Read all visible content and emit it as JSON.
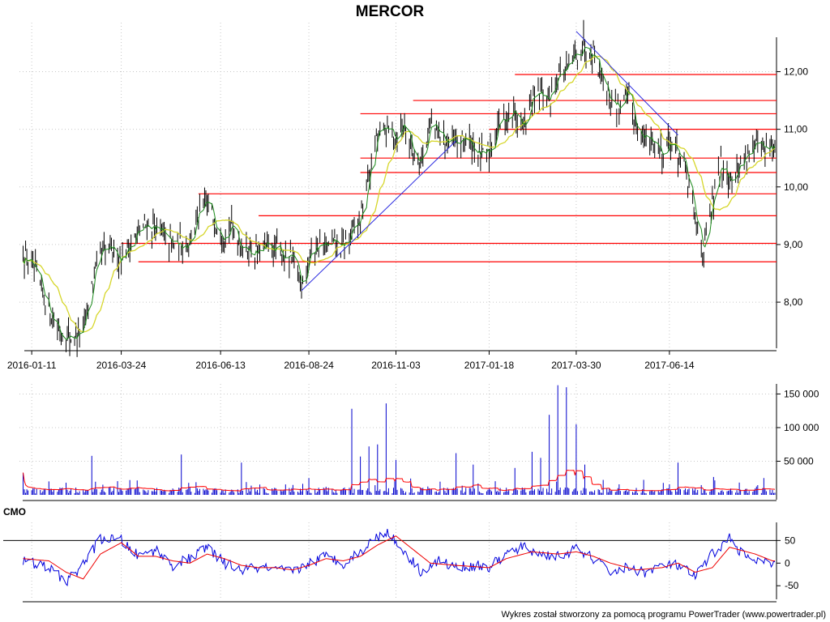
{
  "chart_data": [
    {
      "type": "candlestick",
      "panel": "price",
      "title": "MERCOR",
      "x_tick_labels": [
        "2016-01-11",
        "2016-03-24",
        "2016-06-13",
        "2016-08-24",
        "2016-11-03",
        "2017-01-18",
        "2017-03-30",
        "2017-06-14"
      ],
      "y_tick_labels": [
        "8,00",
        "9,00",
        "10,00",
        "11,00",
        "12,00"
      ],
      "y_tick_values": [
        8,
        9,
        10,
        11,
        12
      ],
      "ylim": [
        7.2,
        12.85
      ],
      "grid": true,
      "approx_close_path": [
        [
          "2016-01-04",
          8.85
        ],
        [
          "2016-01-11",
          8.6
        ],
        [
          "2016-01-18",
          8.25
        ],
        [
          "2016-01-25",
          7.9
        ],
        [
          "2016-02-01",
          7.55
        ],
        [
          "2016-02-08",
          7.4
        ],
        [
          "2016-02-15",
          7.4
        ],
        [
          "2016-02-22",
          7.5
        ],
        [
          "2016-02-29",
          8.3
        ],
        [
          "2016-03-07",
          8.8
        ],
        [
          "2016-03-14",
          8.9
        ],
        [
          "2016-03-24",
          8.8
        ],
        [
          "2016-03-31",
          9.0
        ],
        [
          "2016-04-07",
          9.2
        ],
        [
          "2016-04-14",
          9.35
        ],
        [
          "2016-04-21",
          9.3
        ],
        [
          "2016-04-28",
          9.1
        ],
        [
          "2016-05-05",
          9.0
        ],
        [
          "2016-05-12",
          9.0
        ],
        [
          "2016-05-19",
          9.1
        ],
        [
          "2016-05-26",
          9.5
        ],
        [
          "2016-06-02",
          9.7
        ],
        [
          "2016-06-09",
          9.4
        ],
        [
          "2016-06-16",
          9.2
        ],
        [
          "2016-06-23",
          9.3
        ],
        [
          "2016-06-30",
          9.0
        ],
        [
          "2016-07-07",
          8.9
        ],
        [
          "2016-07-14",
          8.85
        ],
        [
          "2016-07-21",
          8.95
        ],
        [
          "2016-07-28",
          8.9
        ],
        [
          "2016-08-04",
          8.8
        ],
        [
          "2016-08-11",
          8.7
        ],
        [
          "2016-08-18",
          8.35
        ],
        [
          "2016-08-24",
          8.8
        ],
        [
          "2016-08-31",
          9.0
        ],
        [
          "2016-09-07",
          8.95
        ],
        [
          "2016-09-14",
          9.0
        ],
        [
          "2016-09-21",
          8.95
        ],
        [
          "2016-09-28",
          9.2
        ],
        [
          "2016-10-05",
          9.45
        ],
        [
          "2016-10-12",
          10.2
        ],
        [
          "2016-10-19",
          10.9
        ],
        [
          "2016-10-26",
          11.0
        ],
        [
          "2016-11-03",
          10.9
        ],
        [
          "2016-11-10",
          11.1
        ],
        [
          "2016-11-17",
          10.6
        ],
        [
          "2016-11-24",
          10.5
        ],
        [
          "2016-12-01",
          11.1
        ],
        [
          "2016-12-08",
          10.9
        ],
        [
          "2016-12-15",
          10.8
        ],
        [
          "2016-12-22",
          10.7
        ],
        [
          "2016-12-29",
          10.85
        ],
        [
          "2017-01-05",
          10.7
        ],
        [
          "2017-01-12",
          10.5
        ],
        [
          "2017-01-18",
          10.6
        ],
        [
          "2017-01-25",
          11.1
        ],
        [
          "2017-02-01",
          11.2
        ],
        [
          "2017-02-08",
          11.3
        ],
        [
          "2017-02-15",
          11.0
        ],
        [
          "2017-02-22",
          11.5
        ],
        [
          "2017-03-01",
          11.6
        ],
        [
          "2017-03-08",
          11.5
        ],
        [
          "2017-03-15",
          12.0
        ],
        [
          "2017-03-22",
          12.0
        ],
        [
          "2017-03-30",
          12.3
        ],
        [
          "2017-04-06",
          12.5
        ],
        [
          "2017-04-13",
          12.35
        ],
        [
          "2017-04-20",
          11.95
        ],
        [
          "2017-04-27",
          11.5
        ],
        [
          "2017-05-04",
          11.4
        ],
        [
          "2017-05-11",
          11.55
        ],
        [
          "2017-05-18",
          11.1
        ],
        [
          "2017-05-25",
          10.8
        ],
        [
          "2017-06-01",
          10.8
        ],
        [
          "2017-06-08",
          10.6
        ],
        [
          "2017-06-14",
          10.8
        ],
        [
          "2017-06-21",
          10.6
        ],
        [
          "2017-06-28",
          10.2
        ],
        [
          "2017-07-05",
          9.4
        ],
        [
          "2017-07-12",
          8.9
        ],
        [
          "2017-07-19",
          9.7
        ],
        [
          "2017-07-26",
          10.4
        ],
        [
          "2017-08-02",
          10.2
        ],
        [
          "2017-08-09",
          10.3
        ],
        [
          "2017-08-16",
          10.6
        ],
        [
          "2017-08-23",
          10.7
        ],
        [
          "2017-08-30",
          10.6
        ],
        [
          "2017-09-06",
          10.7
        ]
      ],
      "horizontal_levels": [
        {
          "y": 11.95,
          "from": "2017-02-08"
        },
        {
          "y": 11.5,
          "from": "2016-11-17"
        },
        {
          "y": 11.27,
          "from": "2016-10-05"
        },
        {
          "y": 11.0,
          "from": "2017-01-18"
        },
        {
          "y": 10.5,
          "from": "2016-10-05"
        },
        {
          "y": 10.25,
          "from": "2016-10-05"
        },
        {
          "y": 9.88,
          "from": "2016-05-26"
        },
        {
          "y": 9.5,
          "from": "2016-07-14"
        },
        {
          "y": 9.02,
          "from": "2016-03-24"
        },
        {
          "y": 8.7,
          "from": "2016-04-07"
        }
      ],
      "trend_lines": [
        {
          "from": [
            "2016-08-18",
            8.2
          ],
          "to": [
            "2016-12-22",
            10.8
          ]
        },
        {
          "from": [
            "2017-03-30",
            12.7
          ],
          "to": [
            "2017-06-21",
            10.9
          ]
        }
      ],
      "colors": {
        "candles": "#000000",
        "moving_average_short": "#1a8a1a",
        "moving_average_long": "#d6d62a",
        "levels": "#ff0000",
        "trend_lines": "#2929e0"
      }
    },
    {
      "type": "bar",
      "panel": "volume",
      "y_tick_labels": [
        "50 000",
        "100 000",
        "150 000"
      ],
      "y_tick_values": [
        50000,
        100000,
        150000
      ],
      "ylim": [
        0,
        165000
      ],
      "spikes": [
        [
          "2016-01-04",
          33000
        ],
        [
          "2016-01-25",
          20000
        ],
        [
          "2016-02-08",
          18000
        ],
        [
          "2016-02-29",
          58000
        ],
        [
          "2016-03-31",
          22000
        ],
        [
          "2016-05-12",
          60000
        ],
        [
          "2016-06-30",
          48000
        ],
        [
          "2016-08-24",
          25000
        ],
        [
          "2016-09-28",
          128000
        ],
        [
          "2016-10-05",
          57000
        ],
        [
          "2016-10-12",
          72000
        ],
        [
          "2016-10-19",
          75000
        ],
        [
          "2016-10-26",
          136000
        ],
        [
          "2016-11-03",
          52000
        ],
        [
          "2016-12-22",
          62000
        ],
        [
          "2017-01-05",
          45000
        ],
        [
          "2017-02-08",
          40000
        ],
        [
          "2017-02-22",
          64000
        ],
        [
          "2017-03-01",
          55000
        ],
        [
          "2017-03-08",
          119000
        ],
        [
          "2017-03-15",
          163000
        ],
        [
          "2017-03-22",
          160000
        ],
        [
          "2017-03-30",
          105000
        ],
        [
          "2017-04-06",
          45000
        ],
        [
          "2017-06-21",
          48000
        ],
        [
          "2017-08-30",
          25000
        ]
      ],
      "average_line_color": "#ff0000",
      "bar_color": "#0000cc"
    },
    {
      "type": "line",
      "panel": "oscillator",
      "label": "CMO",
      "y_tick_labels": [
        "50",
        "0",
        "-50"
      ],
      "y_tick_values": [
        50,
        0,
        -50
      ],
      "ylim": [
        -80,
        90
      ],
      "reference_line": 50,
      "series": [
        {
          "values": [
            [
              "2016-01-04",
              5
            ],
            [
              "2016-01-25",
              -10
            ],
            [
              "2016-02-08",
              -40
            ],
            [
              "2016-02-15",
              -25
            ],
            [
              "2016-02-29",
              25
            ],
            [
              "2016-03-07",
              55
            ],
            [
              "2016-03-24",
              50
            ],
            [
              "2016-04-07",
              15
            ],
            [
              "2016-04-21",
              30
            ],
            [
              "2016-05-05",
              -5
            ],
            [
              "2016-05-19",
              10
            ],
            [
              "2016-06-02",
              35
            ],
            [
              "2016-06-16",
              0
            ],
            [
              "2016-06-30",
              -15
            ],
            [
              "2016-07-14",
              -10
            ],
            [
              "2016-07-28",
              -15
            ],
            [
              "2016-08-11",
              -20
            ],
            [
              "2016-08-24",
              0
            ],
            [
              "2016-09-07",
              15
            ],
            [
              "2016-09-21",
              0
            ],
            [
              "2016-10-05",
              25
            ],
            [
              "2016-10-19",
              60
            ],
            [
              "2016-10-26",
              70
            ],
            [
              "2016-11-10",
              25
            ],
            [
              "2016-11-24",
              -20
            ],
            [
              "2016-12-08",
              5
            ],
            [
              "2016-12-22",
              -10
            ],
            [
              "2017-01-05",
              -5
            ],
            [
              "2017-01-18",
              -10
            ],
            [
              "2017-02-01",
              20
            ],
            [
              "2017-02-15",
              35
            ],
            [
              "2017-03-01",
              20
            ],
            [
              "2017-03-15",
              15
            ],
            [
              "2017-03-30",
              30
            ],
            [
              "2017-04-13",
              10
            ],
            [
              "2017-04-27",
              -20
            ],
            [
              "2017-05-11",
              -10
            ],
            [
              "2017-05-25",
              -20
            ],
            [
              "2017-06-08",
              -5
            ],
            [
              "2017-06-21",
              -5
            ],
            [
              "2017-07-05",
              -30
            ],
            [
              "2017-07-19",
              20
            ],
            [
              "2017-08-02",
              55
            ],
            [
              "2017-08-16",
              10
            ],
            [
              "2017-08-30",
              0
            ],
            [
              "2017-09-06",
              -5
            ]
          ],
          "color": "#0000dd"
        },
        {
          "values": [
            [
              "2016-01-04",
              10
            ],
            [
              "2016-01-25",
              5
            ],
            [
              "2016-02-08",
              -20
            ],
            [
              "2016-02-22",
              -35
            ],
            [
              "2016-03-07",
              20
            ],
            [
              "2016-03-24",
              45
            ],
            [
              "2016-04-07",
              15
            ],
            [
              "2016-04-21",
              15
            ],
            [
              "2016-05-05",
              5
            ],
            [
              "2016-05-19",
              0
            ],
            [
              "2016-06-02",
              20
            ],
            [
              "2016-06-16",
              10
            ],
            [
              "2016-06-30",
              -5
            ],
            [
              "2016-07-14",
              -10
            ],
            [
              "2016-07-28",
              -10
            ],
            [
              "2016-08-11",
              -15
            ],
            [
              "2016-08-24",
              -5
            ],
            [
              "2016-09-07",
              10
            ],
            [
              "2016-09-21",
              5
            ],
            [
              "2016-10-05",
              15
            ],
            [
              "2016-10-19",
              40
            ],
            [
              "2016-11-03",
              60
            ],
            [
              "2016-11-17",
              30
            ],
            [
              "2016-12-01",
              0
            ],
            [
              "2016-12-22",
              -5
            ],
            [
              "2017-01-18",
              -10
            ],
            [
              "2017-02-01",
              10
            ],
            [
              "2017-02-22",
              25
            ],
            [
              "2017-03-15",
              20
            ],
            [
              "2017-03-30",
              25
            ],
            [
              "2017-04-13",
              15
            ],
            [
              "2017-04-27",
              0
            ],
            [
              "2017-05-18",
              -15
            ],
            [
              "2017-06-08",
              -10
            ],
            [
              "2017-06-21",
              0
            ],
            [
              "2017-07-05",
              -20
            ],
            [
              "2017-07-19",
              -10
            ],
            [
              "2017-08-02",
              35
            ],
            [
              "2017-08-23",
              20
            ],
            [
              "2017-09-06",
              5
            ]
          ],
          "color": "#ee0000"
        }
      ]
    }
  ],
  "footer": {
    "credit": "Wykres został stworzony za pomocą programu PowerTrader (www.powertrader.pl)"
  },
  "colors": {
    "grid": "#c8c8c8",
    "axis": "#000000"
  }
}
